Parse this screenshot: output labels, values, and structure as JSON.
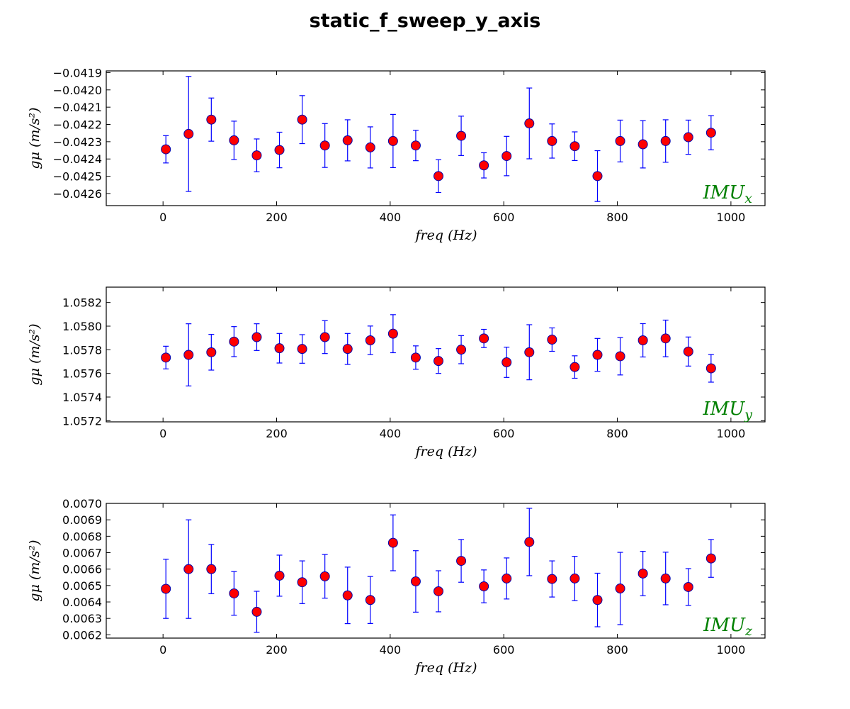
{
  "figure_title": "static_f_sweep_y_axis",
  "chart_data": [
    {
      "type": "scatter",
      "error_bars": true,
      "title": "",
      "xlabel": "freq (Hz)",
      "ylabel": "gμ (m/s²)",
      "annotation": {
        "base": "IMU",
        "sub": "x"
      },
      "xlim": [
        -100,
        1060
      ],
      "ylim": [
        -0.04267,
        -0.04189
      ],
      "xticks": [
        0,
        200,
        400,
        600,
        800,
        1000
      ],
      "xtick_labels": [
        "0",
        "200",
        "400",
        "600",
        "800",
        "1000"
      ],
      "yticks": [
        -0.0426,
        -0.0425,
        -0.0424,
        -0.0423,
        -0.0422,
        -0.0421,
        -0.042,
        -0.0419
      ],
      "ytick_labels": [
        "−0.0426",
        "−0.0425",
        "−0.0424",
        "−0.0423",
        "−0.0422",
        "−0.0421",
        "−0.0420",
        "−0.0419"
      ],
      "grid": false,
      "series": [
        {
          "x": [
            5,
            45,
            85,
            125,
            165,
            205,
            245,
            285,
            325,
            365,
            405,
            445,
            485,
            525,
            565,
            605,
            645,
            685,
            725,
            765,
            805,
            845,
            885,
            925,
            965
          ],
          "y": [
            -0.042344,
            -0.042255,
            -0.042172,
            -0.042292,
            -0.042379,
            -0.042348,
            -0.042172,
            -0.042322,
            -0.042292,
            -0.042333,
            -0.042296,
            -0.042322,
            -0.042499,
            -0.042266,
            -0.042437,
            -0.042383,
            -0.042194,
            -0.042296,
            -0.042326,
            -0.042499,
            -0.042296,
            -0.042315,
            -0.042296,
            -0.042274,
            -0.042248
          ],
          "yerr": [
            7.9e-05,
            0.000333,
            0.000125,
            0.000111,
            9.5e-05,
            0.000103,
            0.000139,
            0.000127,
            0.000119,
            0.000119,
            0.000154,
            8.8e-05,
            9.5e-05,
            0.000114,
            7.3e-05,
            0.000114,
            0.000205,
            9.9e-05,
            8.3e-05,
            0.000147,
            0.000121,
            0.000137,
            0.000123,
            9.9e-05,
            9.9e-05
          ]
        }
      ]
    },
    {
      "type": "scatter",
      "error_bars": true,
      "title": "",
      "xlabel": "freq (Hz)",
      "ylabel": "gμ (m/s²)",
      "annotation": {
        "base": "IMU",
        "sub": "y"
      },
      "xlim": [
        -100,
        1060
      ],
      "ylim": [
        1.05719,
        1.05833
      ],
      "xticks": [
        0,
        200,
        400,
        600,
        800,
        1000
      ],
      "xtick_labels": [
        "0",
        "200",
        "400",
        "600",
        "800",
        "1000"
      ],
      "yticks": [
        1.0572,
        1.0574,
        1.0576,
        1.0578,
        1.058,
        1.0582
      ],
      "ytick_labels": [
        "1.0572",
        "1.0574",
        "1.0576",
        "1.0578",
        "1.0580",
        "1.0582"
      ],
      "grid": false,
      "series": [
        {
          "x": [
            5,
            45,
            85,
            125,
            165,
            205,
            245,
            285,
            325,
            365,
            405,
            445,
            485,
            525,
            565,
            605,
            645,
            685,
            725,
            765,
            805,
            845,
            885,
            925,
            965
          ],
          "y": [
            1.057734,
            1.057757,
            1.057779,
            1.057869,
            1.057907,
            1.057813,
            1.057807,
            1.057907,
            1.057807,
            1.05788,
            1.057936,
            1.057734,
            1.057705,
            1.057801,
            1.057896,
            1.057694,
            1.057779,
            1.057886,
            1.057654,
            1.057757,
            1.057745,
            1.05788,
            1.057896,
            1.057785,
            1.057643
          ],
          "yerr": [
            9.6e-05,
            0.000263,
            0.000151,
            0.000127,
            0.000113,
            0.000125,
            0.000121,
            0.000139,
            0.000131,
            0.000121,
            0.000161,
            9.9e-05,
            0.000105,
            0.000119,
            7.7e-05,
            0.000128,
            0.000233,
            9.9e-05,
            9.5e-05,
            0.000139,
            0.000158,
            0.000141,
            0.000155,
            0.000123,
            0.000117
          ]
        }
      ]
    },
    {
      "type": "scatter",
      "error_bars": true,
      "title": "",
      "xlabel": "freq (Hz)",
      "ylabel": "gμ (m/s²)",
      "annotation": {
        "base": "IMU",
        "sub": "z"
      },
      "xlim": [
        -100,
        1060
      ],
      "ylim": [
        0.00618,
        0.007
      ],
      "xticks": [
        0,
        200,
        400,
        600,
        800,
        1000
      ],
      "xtick_labels": [
        "0",
        "200",
        "400",
        "600",
        "800",
        "1000"
      ],
      "yticks": [
        0.0062,
        0.0063,
        0.0064,
        0.0065,
        0.0066,
        0.0067,
        0.0068,
        0.0069,
        0.007
      ],
      "ytick_labels": [
        "0.0062",
        "0.0063",
        "0.0064",
        "0.0065",
        "0.0066",
        "0.0067",
        "0.0068",
        "0.0069",
        "0.0070"
      ],
      "grid": false,
      "series": [
        {
          "x": [
            5,
            45,
            85,
            125,
            165,
            205,
            245,
            285,
            325,
            365,
            405,
            445,
            485,
            525,
            565,
            605,
            645,
            685,
            725,
            765,
            805,
            845,
            885,
            925,
            965
          ],
          "y": [
            0.00648,
            0.0066,
            0.0066,
            0.006452,
            0.00634,
            0.00656,
            0.00652,
            0.006556,
            0.00644,
            0.006412,
            0.00676,
            0.006525,
            0.006465,
            0.00665,
            0.006495,
            0.006543,
            0.006765,
            0.00654,
            0.006543,
            0.006412,
            0.006482,
            0.006573,
            0.006543,
            0.006491,
            0.006665
          ],
          "yerr": [
            0.00018,
            0.0003,
            0.00015,
            0.000133,
            0.000125,
            0.000125,
            0.00013,
            0.000133,
            0.000172,
            0.000143,
            0.00017,
            0.000187,
            0.000125,
            0.00013,
            0.0001,
            0.000125,
            0.000205,
            0.00011,
            0.000135,
            0.000163,
            0.00022,
            0.000135,
            0.00016,
            0.000112,
            0.000115
          ]
        }
      ]
    }
  ],
  "colors": {
    "marker_fill": "#ff0000",
    "marker_edge": "#0000aa",
    "error_bar": "#0000ff",
    "annotation": "#008000",
    "axes": "#000000"
  }
}
